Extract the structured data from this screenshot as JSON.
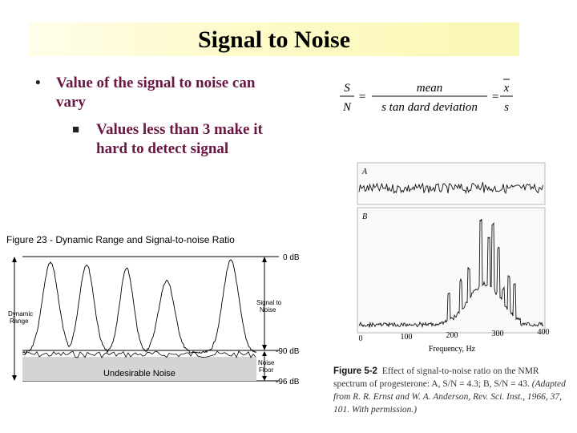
{
  "title": "Signal to Noise",
  "bullets": {
    "level1": "Value of the signal to noise can vary",
    "level2": "Values less than 3 make it hard to detect signal"
  },
  "formula": {
    "lhs_num": "S",
    "lhs_den": "N",
    "eq": "=",
    "mid_num": "mean",
    "mid_den": "s tan dard deviation",
    "rhs_num": "x",
    "rhs_den": "s"
  },
  "figure23": {
    "title": "Figure 23 - Dynamic Range and Signal-to-noise Ratio",
    "label_0db": "0 dB",
    "label_90db": "-90 dB",
    "label_96db": "-96 dB",
    "dynamic_range": [
      "Dynamic",
      "Range"
    ],
    "signal_to_noise": [
      "Signal to",
      "Noise"
    ],
    "noise_floor": [
      "Noise",
      "Floor"
    ],
    "undesirable_noise": "Undesirable Noise"
  },
  "figure52": {
    "panel_a": "A",
    "panel_b": "B",
    "x_ticks": [
      "0",
      "100",
      "200",
      "300",
      "400"
    ],
    "x_label": "Frequency, Hz",
    "caption_label": "Figure 5-2",
    "caption_text": "Effect of signal-to-noise ratio on the NMR spectrum of progesterone: A, S/N = 4.3; B, S/N = 43.",
    "caption_source": "(Adapted from R. R. Ernst and W. A. Anderson, Rev. Sci. Inst., 1966, 37, 101. With permission.)"
  },
  "colors": {
    "title_band": "#fdfbc8",
    "bullet_text": "#6a1744"
  }
}
